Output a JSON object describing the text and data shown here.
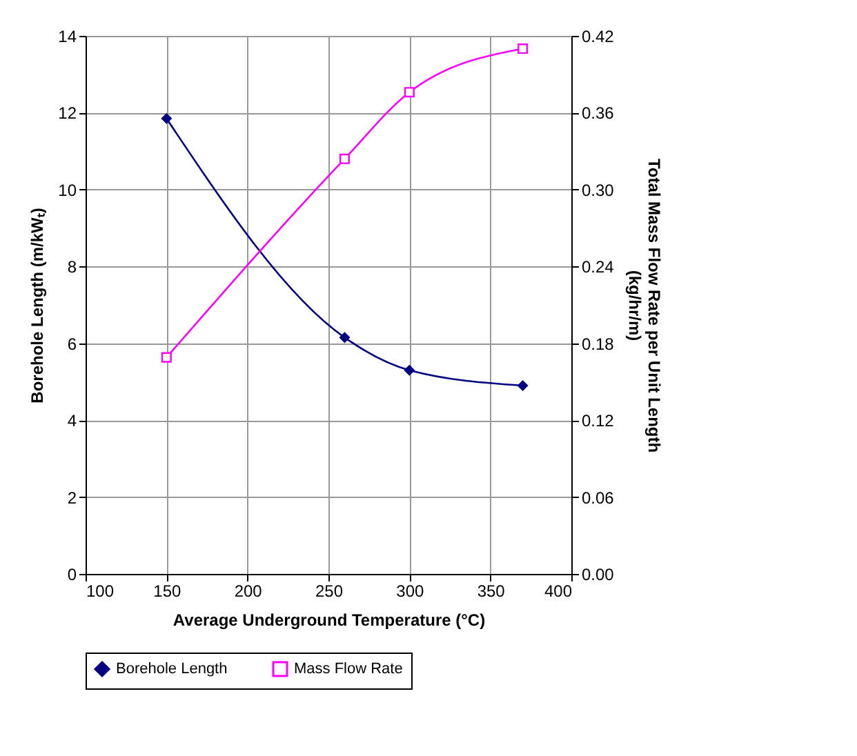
{
  "chart_data": {
    "type": "line",
    "xlabel": "Average Underground Temperature (°C)",
    "ylabel": "Borehole Length (m/kWₜ)",
    "y2label": "Total Mass Flow Rate per Unit Length\n(kg/hr/m)",
    "x": [
      150,
      260,
      300,
      370
    ],
    "series": [
      {
        "name": "Borehole Length",
        "color": "#000080",
        "marker": "diamond",
        "values": [
          11.85,
          6.15,
          5.3,
          4.9
        ]
      },
      {
        "name": "Mass Flow Rate",
        "color": "#ff00ff",
        "marker": "square",
        "axis": "y2",
        "values": [
          0.169,
          0.324,
          0.376,
          0.41
        ]
      }
    ],
    "xlim": [
      100,
      400
    ],
    "xticks": [
      100,
      150,
      200,
      250,
      300,
      350,
      400
    ],
    "ylim": [
      0,
      14
    ],
    "yticks": [
      0,
      2,
      4,
      6,
      8,
      10,
      12,
      14
    ],
    "y2lim": [
      0,
      0.42
    ],
    "y2ticks": [
      {
        "value": 0,
        "label": "0.00"
      },
      0.06,
      0.12,
      0.18,
      0.24,
      {
        "value": 0.3,
        "label": "0.30"
      },
      0.36,
      0.42
    ],
    "grid": true,
    "legend": "bottom",
    "line_style": "solid"
  }
}
